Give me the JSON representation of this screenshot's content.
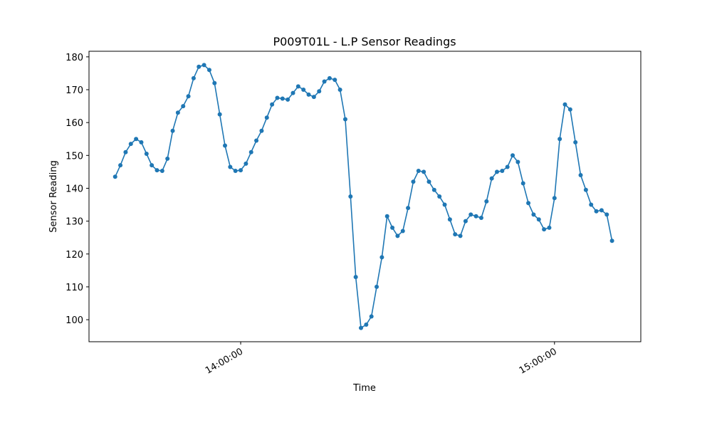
{
  "chart_data": {
    "type": "line",
    "title": "P009T01L - L.P Sensor Readings",
    "x_label": "Time",
    "y_label": "Sensor Reading",
    "x": [
      "13:36:00",
      "13:37:00",
      "13:38:00",
      "13:39:00",
      "13:40:00",
      "13:41:00",
      "13:42:00",
      "13:43:00",
      "13:44:00",
      "13:45:00",
      "13:46:00",
      "13:47:00",
      "13:48:00",
      "13:49:00",
      "13:50:00",
      "13:51:00",
      "13:52:00",
      "13:53:00",
      "13:54:00",
      "13:55:00",
      "13:56:00",
      "13:57:00",
      "13:58:00",
      "13:59:00",
      "14:00:00",
      "14:01:00",
      "14:02:00",
      "14:03:00",
      "14:04:00",
      "14:05:00",
      "14:06:00",
      "14:07:00",
      "14:08:00",
      "14:09:00",
      "14:10:00",
      "14:11:00",
      "14:12:00",
      "14:13:00",
      "14:14:00",
      "14:15:00",
      "14:16:00",
      "14:17:00",
      "14:18:00",
      "14:19:00",
      "14:20:00",
      "14:21:00",
      "14:22:00",
      "14:23:00",
      "14:24:00",
      "14:25:00",
      "14:26:00",
      "14:27:00",
      "14:28:00",
      "14:29:00",
      "14:30:00",
      "14:31:00",
      "14:32:00",
      "14:33:00",
      "14:34:00",
      "14:35:00",
      "14:36:00",
      "14:37:00",
      "14:38:00",
      "14:39:00",
      "14:40:00",
      "14:41:00",
      "14:42:00",
      "14:43:00",
      "14:44:00",
      "14:45:00",
      "14:46:00",
      "14:47:00",
      "14:48:00",
      "14:49:00",
      "14:50:00",
      "14:51:00",
      "14:52:00",
      "14:53:00",
      "14:54:00",
      "14:55:00",
      "14:56:00",
      "14:57:00",
      "14:58:00",
      "14:59:00",
      "15:00:00",
      "15:01:00",
      "15:02:00",
      "15:03:00",
      "15:04:00",
      "15:05:00",
      "15:06:00",
      "15:07:00",
      "15:08:00",
      "15:09:00",
      "15:10:00",
      "15:11:00"
    ],
    "series": [
      {
        "name": "L.P",
        "color": "#1f77b4",
        "values": [
          143.5,
          147,
          151,
          153.5,
          155,
          154,
          150.5,
          147,
          145.5,
          145.3,
          149,
          157.5,
          163,
          165,
          168,
          173.5,
          177,
          177.5,
          176,
          172,
          162.5,
          153,
          146.5,
          145.3,
          145.5,
          147.5,
          151,
          154.5,
          157.5,
          161.5,
          165.5,
          167.5,
          167.3,
          167,
          169,
          171,
          170,
          168.5,
          167.8,
          169.5,
          172.5,
          173.5,
          173,
          170,
          161,
          137.5,
          113,
          97.5,
          98.5,
          101,
          110,
          119,
          131.5,
          128,
          125.5,
          127,
          134,
          142,
          145.3,
          145,
          142,
          139.5,
          137.5,
          135,
          130.5,
          126,
          125.5,
          130,
          132,
          131.5,
          131,
          136,
          143,
          145,
          145.3,
          146.5,
          150,
          148,
          141.5,
          135.5,
          132,
          130.5,
          127.5,
          128,
          137,
          155,
          165.5,
          164,
          154,
          144,
          139.5,
          135,
          133,
          133.3,
          132,
          124
        ]
      }
    ],
    "xlim": [
      "13:31:00",
      "15:16:30"
    ],
    "xticks": [
      "14:00:00",
      "15:00:00"
    ],
    "ylim": [
      93.3,
      181.7
    ],
    "yticks": [
      100,
      110,
      120,
      130,
      140,
      150,
      160,
      170,
      180
    ],
    "grid": false
  }
}
